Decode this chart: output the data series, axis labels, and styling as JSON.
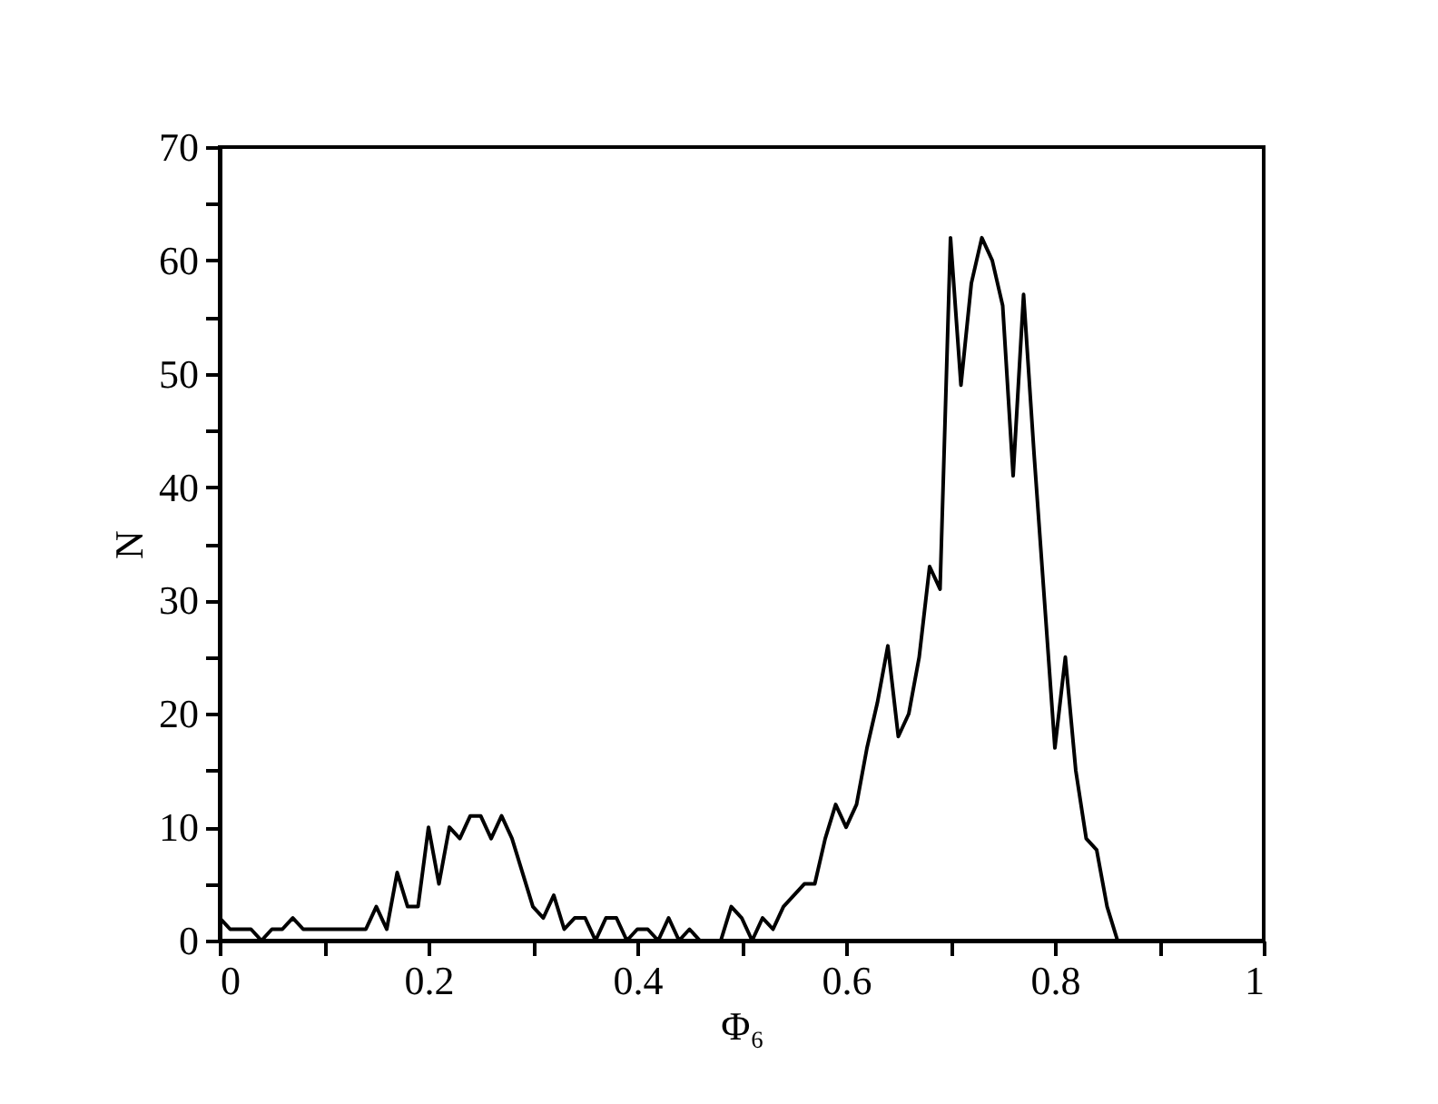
{
  "chart_data": {
    "type": "line",
    "xlabel": "Φ₆",
    "ylabel": "N",
    "x": [
      0,
      0.01,
      0.02,
      0.03,
      0.04,
      0.05,
      0.06,
      0.07,
      0.08,
      0.09,
      0.1,
      0.11,
      0.12,
      0.13,
      0.14,
      0.15,
      0.16,
      0.17,
      0.18,
      0.19,
      0.2,
      0.21,
      0.22,
      0.23,
      0.24,
      0.25,
      0.26,
      0.27,
      0.28,
      0.29,
      0.3,
      0.31,
      0.32,
      0.33,
      0.34,
      0.35,
      0.36,
      0.37,
      0.38,
      0.39,
      0.4,
      0.41,
      0.42,
      0.43,
      0.44,
      0.45,
      0.46,
      0.47,
      0.48,
      0.49,
      0.5,
      0.51,
      0.52,
      0.53,
      0.54,
      0.55,
      0.56,
      0.57,
      0.58,
      0.59,
      0.6,
      0.61,
      0.62,
      0.63,
      0.64,
      0.65,
      0.66,
      0.67,
      0.68,
      0.69,
      0.7,
      0.71,
      0.72,
      0.73,
      0.74,
      0.75,
      0.76,
      0.77,
      0.78,
      0.79,
      0.8,
      0.81,
      0.82,
      0.83,
      0.84,
      0.85,
      0.86
    ],
    "series": [
      {
        "color": "#000000",
        "values": [
          2,
          1,
          1,
          1,
          0,
          1,
          1,
          2,
          1,
          1,
          1,
          1,
          1,
          1,
          1,
          3,
          1,
          6,
          3,
          3,
          10,
          5,
          10,
          9,
          11,
          11,
          9,
          11,
          9,
          6,
          3,
          2,
          4,
          1,
          2,
          2,
          0,
          2,
          2,
          0,
          1,
          1,
          0,
          2,
          0,
          1,
          0,
          0,
          0,
          3,
          2,
          0,
          2,
          1,
          3,
          4,
          5,
          5,
          9,
          12,
          10,
          12,
          17,
          21,
          26,
          18,
          20,
          25,
          33,
          31,
          62,
          49,
          58,
          62,
          60,
          56,
          41,
          57,
          43,
          30,
          17,
          25,
          15,
          9,
          8,
          3,
          0
        ]
      }
    ],
    "xlim": [
      0,
      1
    ],
    "ylim": [
      0,
      70
    ],
    "xticks": [
      0,
      {
        "value": 0.1,
        "label": null
      },
      0.2,
      {
        "value": 0.3,
        "label": null
      },
      0.4,
      {
        "value": 0.5,
        "label": null
      },
      0.6,
      {
        "value": 0.7,
        "label": null
      },
      0.8,
      {
        "value": 0.9,
        "label": null
      },
      1
    ],
    "yticks": [
      0,
      {
        "value": 5,
        "label": null
      },
      10,
      {
        "value": 15,
        "label": null
      },
      20,
      {
        "value": 25,
        "label": null
      },
      30,
      {
        "value": 35,
        "label": null
      },
      40,
      {
        "value": 45,
        "label": null
      },
      50,
      {
        "value": 55,
        "label": null
      },
      60,
      {
        "value": 65,
        "label": null
      },
      70
    ],
    "grid": false,
    "marker": "none",
    "line_style": "solid"
  }
}
